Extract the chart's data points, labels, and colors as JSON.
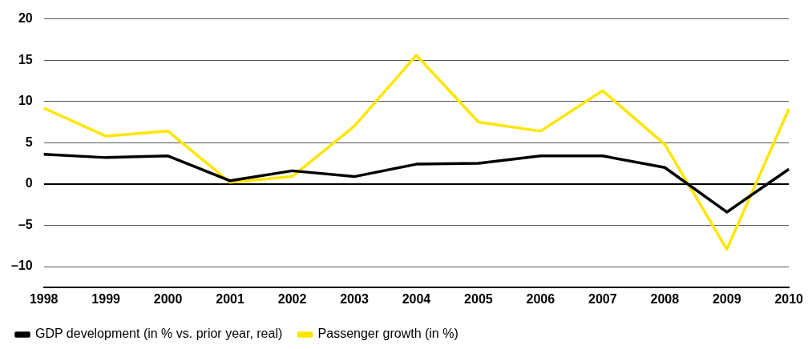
{
  "chart_data": {
    "type": "line",
    "categories": [
      "1998",
      "1999",
      "2000",
      "2001",
      "2002",
      "2003",
      "2004",
      "2005",
      "2006",
      "2007",
      "2008",
      "2009",
      "2010"
    ],
    "series": [
      {
        "name": "GDP development (in % vs. prior year, real)",
        "color": "#000000",
        "values": [
          3.6,
          3.2,
          3.4,
          0.4,
          1.6,
          0.9,
          2.4,
          2.5,
          3.4,
          3.4,
          2.0,
          -3.4,
          1.8
        ]
      },
      {
        "name": "Passenger growth (in %)",
        "color": "#ffe600",
        "values": [
          9.2,
          5.8,
          6.4,
          0.2,
          0.9,
          7.0,
          15.6,
          7.5,
          6.4,
          11.3,
          4.8,
          -7.9,
          9.1
        ]
      }
    ],
    "ylim": [
      -12.5,
      20
    ],
    "yticks": [
      {
        "value": -10,
        "label": "–10"
      },
      {
        "value": -5,
        "label": "–5"
      },
      0,
      5,
      10,
      15,
      20
    ],
    "grid": "y",
    "legend": "bottom left",
    "marker": "none",
    "line_style": "solid"
  }
}
